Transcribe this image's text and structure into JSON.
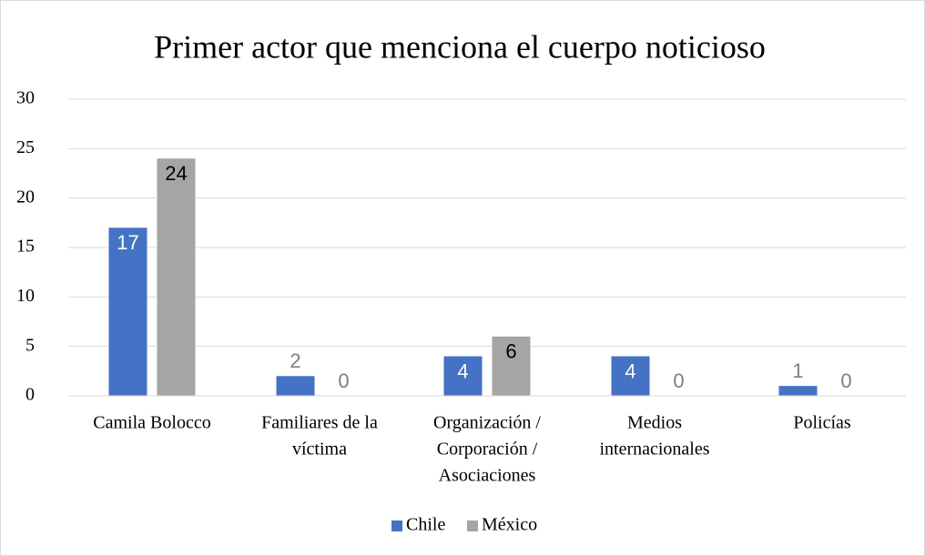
{
  "chart_data": {
    "type": "bar",
    "title": "Primer actor que menciona el cuerpo noticioso",
    "categories": [
      [
        "Camila Bolocco"
      ],
      [
        "Familiares de la",
        "víctima"
      ],
      [
        "Organización /",
        "Corporación /",
        "Asociaciones"
      ],
      [
        "Medios",
        "internacionales"
      ],
      [
        "Policías"
      ]
    ],
    "series": [
      {
        "name": "Chile",
        "color": "#4472c4",
        "values": [
          17,
          2,
          4,
          4,
          1
        ]
      },
      {
        "name": "México",
        "color": "#a5a5a5",
        "values": [
          24,
          0,
          6,
          0,
          0
        ]
      }
    ],
    "ylim": [
      0,
      30
    ],
    "yticks": [
      0,
      5,
      10,
      15,
      20,
      25,
      30
    ],
    "grid": true,
    "legend": "bottom"
  }
}
